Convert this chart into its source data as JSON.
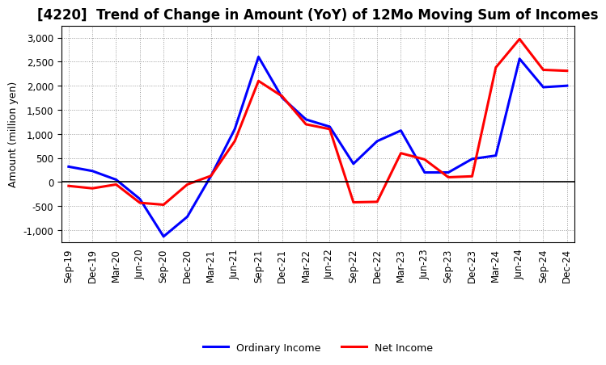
{
  "title": "[4220]  Trend of Change in Amount (YoY) of 12Mo Moving Sum of Incomes",
  "ylabel": "Amount (million yen)",
  "x_labels": [
    "Sep-19",
    "Dec-19",
    "Mar-20",
    "Jun-20",
    "Sep-20",
    "Dec-20",
    "Mar-21",
    "Jun-21",
    "Sep-21",
    "Dec-21",
    "Mar-22",
    "Jun-22",
    "Sep-22",
    "Dec-22",
    "Mar-23",
    "Jun-23",
    "Sep-23",
    "Dec-23",
    "Mar-24",
    "Jun-24",
    "Sep-24",
    "Dec-24"
  ],
  "ordinary_income": [
    320,
    230,
    50,
    -350,
    -1130,
    -720,
    130,
    1100,
    2600,
    1750,
    1300,
    1150,
    380,
    850,
    1070,
    200,
    200,
    480,
    550,
    2560,
    1970,
    2000
  ],
  "net_income": [
    -80,
    -130,
    -50,
    -430,
    -470,
    -50,
    130,
    850,
    2100,
    1780,
    1200,
    1100,
    -420,
    -410,
    600,
    470,
    100,
    120,
    2380,
    2970,
    2330,
    2310
  ],
  "ordinary_color": "#0000FF",
  "net_color": "#FF0000",
  "ylim": [
    -1250,
    3250
  ],
  "yticks": [
    -1000,
    -500,
    0,
    500,
    1000,
    1500,
    2000,
    2500,
    3000
  ],
  "background_color": "#FFFFFF",
  "grid_color": "#999999",
  "line_width": 2.2,
  "title_fontsize": 12,
  "axis_fontsize": 8.5,
  "ylabel_fontsize": 9,
  "legend_fontsize": 9
}
